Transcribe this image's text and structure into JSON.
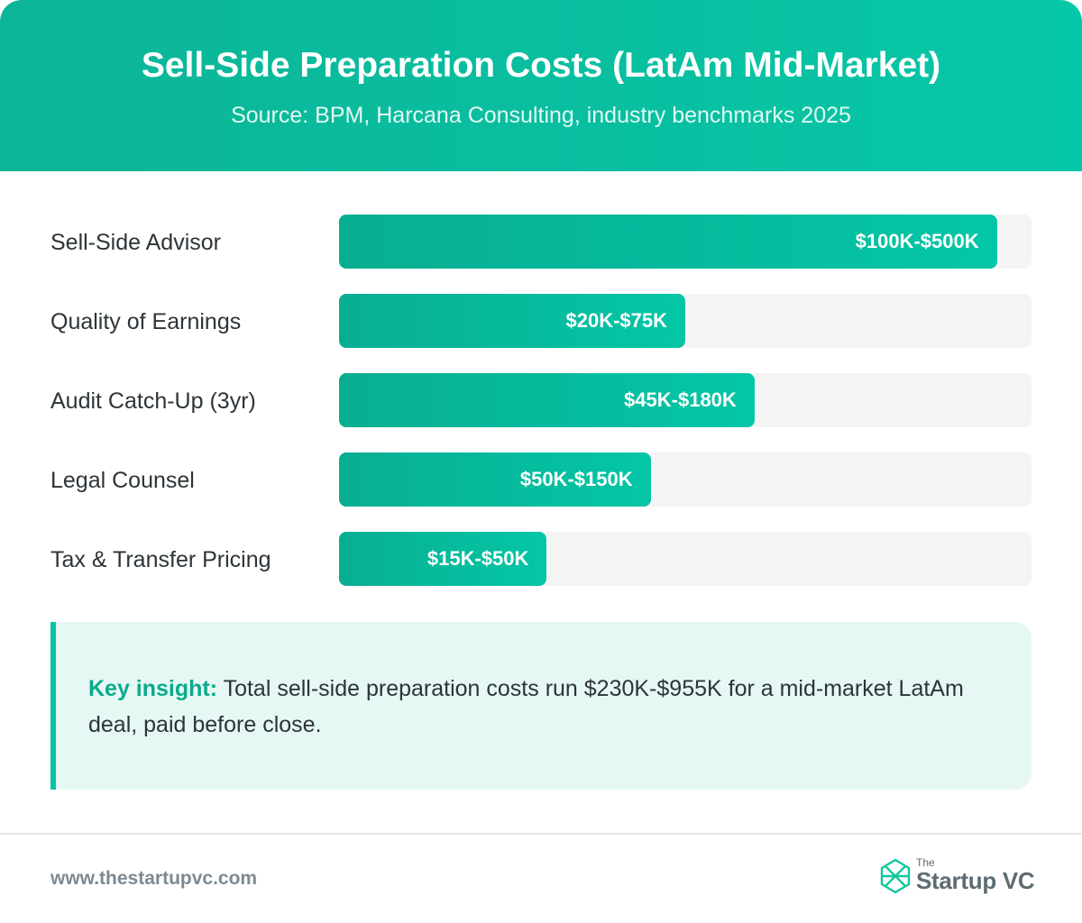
{
  "header": {
    "title": "Sell-Side Preparation Costs (LatAm Mid-Market)",
    "subtitle": "Source: BPM, Harcana Consulting, industry benchmarks 2025"
  },
  "chart_data": {
    "type": "bar",
    "orientation": "horizontal",
    "title": "Sell-Side Preparation Costs (LatAm Mid-Market)",
    "subtitle": "Source: BPM, Harcana Consulting, industry benchmarks 2025",
    "categories": [
      "Sell-Side Advisor",
      "Quality of Earnings",
      "Audit Catch-Up (3yr)",
      "Legal Counsel",
      "Tax & Transfer Pricing"
    ],
    "value_labels": [
      "$100K-$500K",
      "$20K-$75K",
      "$45K-$180K",
      "$50K-$150K",
      "$15K-$50K"
    ],
    "bar_fill_fraction": [
      0.95,
      0.5,
      0.6,
      0.45,
      0.3
    ],
    "grid": false,
    "legend": "none",
    "colors": {
      "bar_start": "#08ae92",
      "bar_end": "#04c6a6",
      "track": "#f4f4f5"
    }
  },
  "insight": {
    "label": "Key insight:",
    "text": " Total sell-side preparation costs run $230K-$955K for a mid-market LatAm deal, paid before close."
  },
  "footer": {
    "url": "www.thestartupvc.com",
    "logo_small": "The",
    "logo_name": "Startup VC",
    "logo_icon": "startupvc-logo-icon"
  },
  "colors": {
    "accent": "#0cc4a4",
    "header_start": "#0cb597",
    "header_end": "#06c7a7",
    "insight_bg": "#e6f8f4"
  }
}
